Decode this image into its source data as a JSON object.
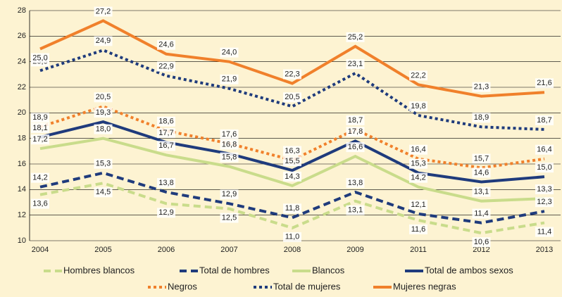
{
  "chart_data": {
    "type": "line",
    "categories": [
      "2004",
      "2005",
      "2006",
      "2007",
      "2008",
      "2009",
      "2011",
      "2012",
      "2013"
    ],
    "ylim": [
      10,
      28
    ],
    "yticks": [
      10,
      12,
      14,
      16,
      18,
      20,
      22,
      24,
      26,
      28
    ],
    "grid": true,
    "series": [
      {
        "name": "Hombres blancos",
        "color": "#c9dc8b",
        "dash": "dashed",
        "values": [
          13.6,
          14.5,
          12.9,
          12.5,
          11.0,
          13.1,
          11.6,
          10.6,
          11.4
        ],
        "value_labels": [
          "13,6",
          "14,5",
          "12,9",
          "12,5",
          "11,0",
          "13,1",
          "11,6",
          "10,6",
          "11,4"
        ]
      },
      {
        "name": "Total de hombres",
        "color": "#1f3b7c",
        "dash": "dashed",
        "values": [
          14.2,
          15.3,
          13.8,
          12.9,
          11.8,
          13.8,
          12.1,
          11.4,
          12.3
        ],
        "value_labels": [
          "14,2",
          "15,3",
          "13,8",
          "12,9",
          "11,8",
          "13,8",
          "12,1",
          "11,4",
          "12,3"
        ]
      },
      {
        "name": "Blancos",
        "color": "#c9dc8b",
        "dash": "solid",
        "values": [
          17.2,
          18.0,
          16.7,
          15.8,
          14.3,
          16.6,
          14.2,
          13.1,
          13.3
        ],
        "value_labels": [
          "17,2",
          "18,0",
          "16,7",
          "15,8",
          "14,3",
          "16,6",
          "14,2",
          "13,1",
          "13,3"
        ]
      },
      {
        "name": "Total de ambos sexos",
        "color": "#1f3b7c",
        "dash": "solid",
        "values": [
          18.1,
          19.3,
          17.7,
          16.8,
          15.5,
          17.8,
          15.3,
          14.6,
          15.0
        ],
        "value_labels": [
          "18,1",
          "19,3",
          "17,7",
          "16,8",
          "15,5",
          "17,8",
          "15,3",
          "14,6",
          "15,0"
        ]
      },
      {
        "name": "Negros",
        "color": "#f0802b",
        "dash": "dotted",
        "values": [
          18.9,
          20.5,
          18.6,
          17.6,
          16.3,
          18.7,
          16.4,
          15.7,
          16.4
        ],
        "value_labels": [
          "18,9",
          "20,5",
          "18,6",
          "17,6",
          "16,3",
          "18,7",
          "16,4",
          "15,7",
          "16,4"
        ]
      },
      {
        "name": "Total de mujeres",
        "color": "#1f3b7c",
        "dash": "dotted",
        "values": [
          23.3,
          24.9,
          22.9,
          21.9,
          20.5,
          23.1,
          19.8,
          18.9,
          18.7
        ],
        "value_labels": [
          "23,3",
          "24,9",
          "22,9",
          "21,9",
          "20,5",
          "23,1",
          "19,8",
          "18,9",
          "18,7"
        ]
      },
      {
        "name": "Mujeres negras",
        "color": "#f0802b",
        "dash": "solid",
        "values": [
          25.0,
          27.2,
          24.6,
          24.0,
          22.3,
          25.2,
          22.2,
          21.3,
          21.6
        ],
        "value_labels": [
          "25,0",
          "27,2",
          "24,6",
          "24,0",
          "22,3",
          "25,2",
          "22,2",
          "21,3",
          "21,6"
        ]
      }
    ]
  }
}
